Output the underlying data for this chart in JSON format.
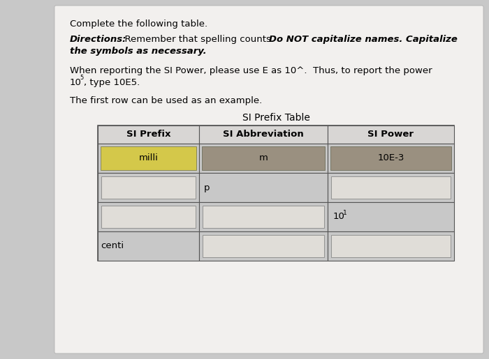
{
  "bg_color": "#c8c8c8",
  "card_color": "#f0eeec",
  "table_bg": "#c8c8c8",
  "milli_bg": "#e8d870",
  "m_bg": "#b8b090",
  "power_bg": "#b8b090",
  "white_cell": "#e8e6e4",
  "header_bg": "#d8d6d4",
  "col_headers": [
    "SI Prefix",
    "SI Abbreviation",
    "SI Power"
  ],
  "font_size": 9.5,
  "table_font_size": 9.5
}
